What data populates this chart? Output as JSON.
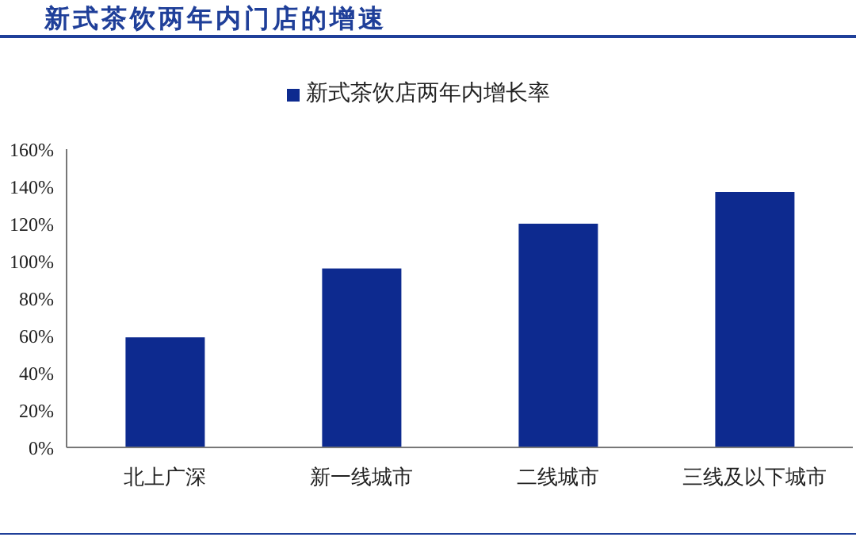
{
  "chart_data": {
    "type": "bar",
    "title": "新式茶饮两年内门店的增速",
    "categories": [
      "北上广深",
      "新一线城市",
      "二线城市",
      "三线及以下城市"
    ],
    "series": [
      {
        "name": "新式茶饮店两年内增长率",
        "color": "#0d2a8f",
        "values": [
          59,
          96,
          120,
          137
        ]
      }
    ],
    "ylim": [
      0,
      160
    ],
    "yticks": [
      {
        "value": 0,
        "label": "0%"
      },
      {
        "value": 20,
        "label": "20%"
      },
      {
        "value": 40,
        "label": "40%"
      },
      {
        "value": 60,
        "label": "60%"
      },
      {
        "value": 80,
        "label": "80%"
      },
      {
        "value": 100,
        "label": "100%"
      },
      {
        "value": 120,
        "label": "120%"
      },
      {
        "value": 140,
        "label": "140%"
      },
      {
        "value": 160,
        "label": "160%"
      }
    ],
    "grid": false,
    "legend": "top"
  }
}
